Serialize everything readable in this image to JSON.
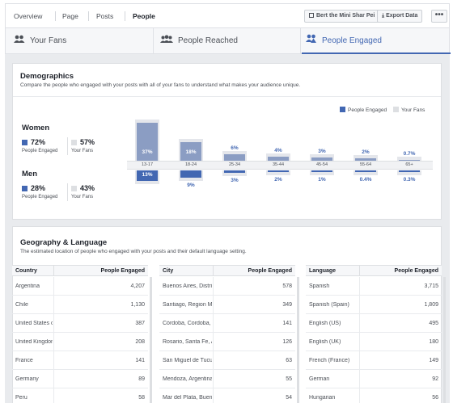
{
  "nav": {
    "tabs": [
      "Overview",
      "Page",
      "Posts",
      "People"
    ],
    "active_tab": "People",
    "page_button": "Bert the Mini Shar Pei",
    "export_button": "Export Data",
    "more": "•••"
  },
  "subtabs": [
    "Your Fans",
    "People Reached",
    "People Engaged"
  ],
  "demographics": {
    "title": "Demographics",
    "subtitle": "Compare the people who engaged with your posts with all of your fans to understand what makes your audience unique.",
    "legend": [
      "People Engaged",
      "Your Fans"
    ],
    "women": {
      "title": "Women",
      "engaged_pct": "72%",
      "fans_pct": "57%",
      "engaged_label": "People Engaged",
      "fans_label": "Your Fans"
    },
    "men": {
      "title": "Men",
      "engaged_pct": "28%",
      "fans_pct": "43%",
      "engaged_label": "People Engaged",
      "fans_label": "Your Fans"
    }
  },
  "chart_data": {
    "type": "bar",
    "categories": [
      "13-17",
      "18-24",
      "25-34",
      "35-44",
      "45-54",
      "55-64",
      "65+"
    ],
    "series": [
      {
        "name": "Women – People Engaged",
        "values": [
          37,
          18,
          6,
          4,
          3,
          2,
          0.7
        ],
        "labels": [
          "37%",
          "18%",
          "6%",
          "4%",
          "3%",
          "2%",
          "0.7%"
        ]
      },
      {
        "name": "Men – People Engaged",
        "values": [
          13,
          9,
          3,
          2,
          1,
          0.4,
          0.3
        ],
        "labels": [
          "13%",
          "9%",
          "3%",
          "2%",
          "1%",
          "0.4%",
          "0.3%"
        ]
      }
    ],
    "legend": [
      "People Engaged",
      "Your Fans"
    ],
    "colors": {
      "engaged": "#4267b2",
      "engaged_light": "#8b9dc3",
      "fans": "#dddfe2"
    }
  },
  "geo": {
    "title": "Geography & Language",
    "subtitle": "The estimated location of people who engaged with your posts and their default language setting.",
    "tables": [
      {
        "header": [
          "Country",
          "People Engaged"
        ],
        "rows": [
          [
            "Argentina",
            "4,207"
          ],
          [
            "Chile",
            "1,130"
          ],
          [
            "United States of America",
            "387"
          ],
          [
            "United Kingdom",
            "208"
          ],
          [
            "France",
            "141"
          ],
          [
            "Germany",
            "89"
          ],
          [
            "Peru",
            "58"
          ]
        ]
      },
      {
        "header": [
          "City",
          "People Engaged"
        ],
        "rows": [
          [
            "Buenos Aires, Distrito Fed...",
            "578"
          ],
          [
            "Santiago, Region Metropo...",
            "349"
          ],
          [
            "Córdoba, Cordoba, Argen...",
            "141"
          ],
          [
            "Rosario, Santa Fe, Argentina",
            "126"
          ],
          [
            "San Miguel de Tucumán, ...",
            "63"
          ],
          [
            "Mendoza, Argentina",
            "55"
          ],
          [
            "Mar del Plata, Buenos Aires",
            "54"
          ]
        ]
      },
      {
        "header": [
          "Language",
          "People Engaged"
        ],
        "rows": [
          [
            "Spanish",
            "3,715"
          ],
          [
            "Spanish (Spain)",
            "1,809"
          ],
          [
            "English (US)",
            "495"
          ],
          [
            "English (UK)",
            "180"
          ],
          [
            "French (France)",
            "149"
          ],
          [
            "German",
            "92"
          ],
          [
            "Hungarian",
            "56"
          ]
        ]
      }
    ]
  }
}
